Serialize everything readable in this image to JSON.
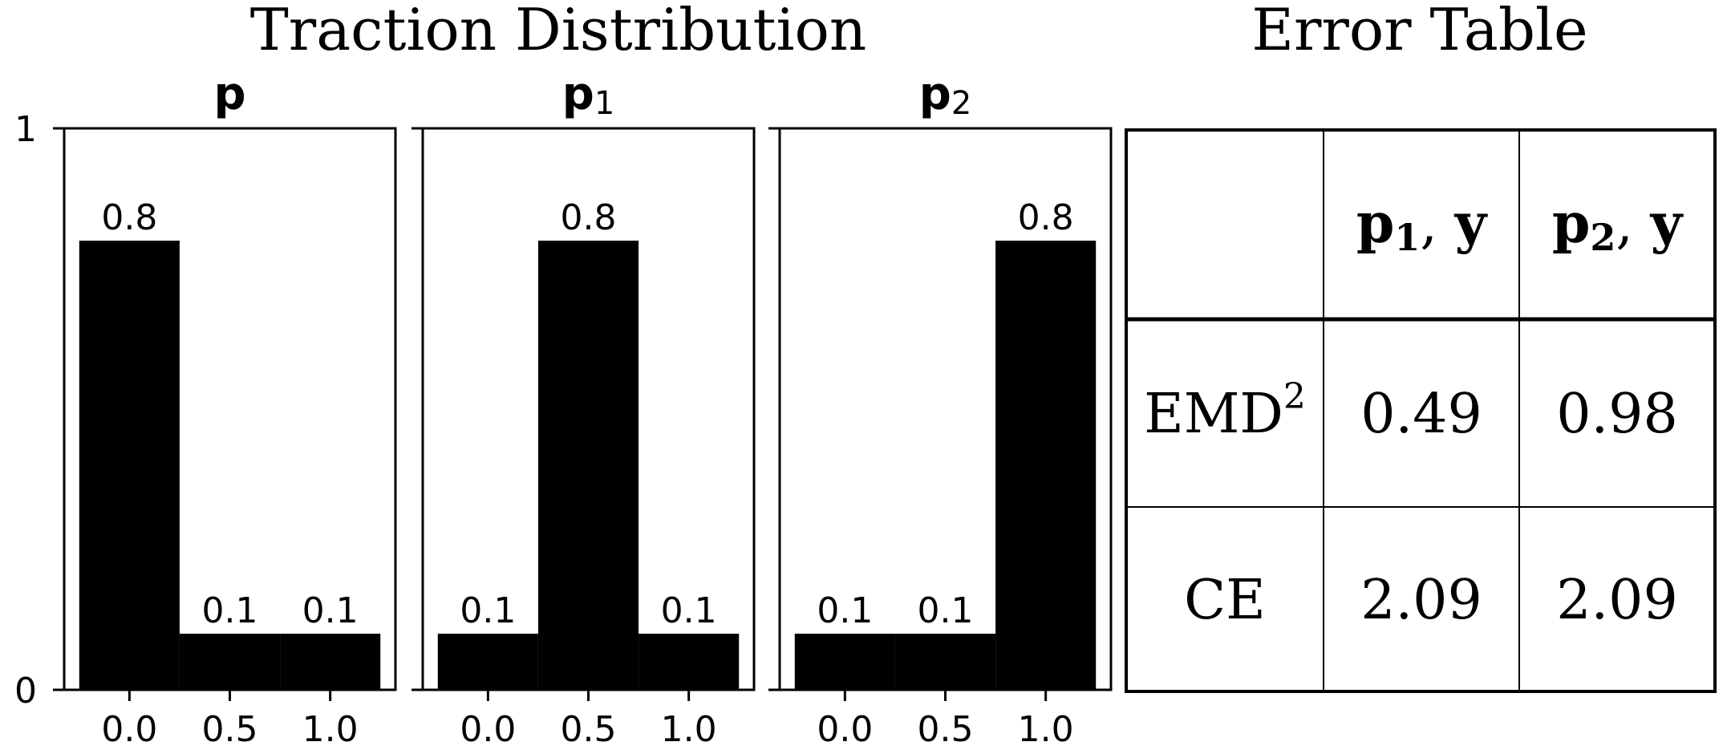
{
  "header": {
    "left_title": "Traction Distribution",
    "right_title": "Error Table"
  },
  "chart_data": [
    {
      "type": "bar",
      "title_main": "p",
      "title_sub": "",
      "x": [
        0.0,
        0.5,
        1.0
      ],
      "values": [
        0.8,
        0.1,
        0.1
      ],
      "data_labels": [
        "0.8",
        "0.1",
        "0.1"
      ],
      "xticks": [
        "0.0",
        "0.5",
        "1.0"
      ],
      "yticks": [
        "0",
        "1"
      ],
      "ylim": [
        0,
        1
      ],
      "xlim": [
        -0.325,
        1.325
      ],
      "bar_width": 0.5,
      "bar_color": "#000000"
    },
    {
      "type": "bar",
      "title_main": "p",
      "title_sub": "1",
      "x": [
        0.0,
        0.5,
        1.0
      ],
      "values": [
        0.1,
        0.8,
        0.1
      ],
      "data_labels": [
        "0.1",
        "0.8",
        "0.1"
      ],
      "xticks": [
        "0.0",
        "0.5",
        "1.0"
      ],
      "yticks": [
        "0",
        "1"
      ],
      "ylim": [
        0,
        1
      ],
      "xlim": [
        -0.325,
        1.325
      ],
      "bar_width": 0.5,
      "bar_color": "#000000"
    },
    {
      "type": "bar",
      "title_main": "p",
      "title_sub": "2",
      "x": [
        0.0,
        0.5,
        1.0
      ],
      "values": [
        0.1,
        0.1,
        0.8
      ],
      "data_labels": [
        "0.1",
        "0.1",
        "0.8"
      ],
      "xticks": [
        "0.0",
        "0.5",
        "1.0"
      ],
      "yticks": [
        "0",
        "1"
      ],
      "ylim": [
        0,
        1
      ],
      "xlim": [
        -0.325,
        1.325
      ],
      "bar_width": 0.5,
      "bar_color": "#000000"
    },
    {
      "type": "table",
      "columns": [
        {
          "main": "p",
          "sub": "1",
          "sep": ", ",
          "tail": "y"
        },
        {
          "main": "p",
          "sub": "2",
          "sep": ", ",
          "tail": "y"
        }
      ],
      "rows": [
        {
          "label": "EMD",
          "label_sup": "2",
          "values": [
            "0.49",
            "0.98"
          ]
        },
        {
          "label": "CE",
          "label_sup": "",
          "values": [
            "2.09",
            "2.09"
          ]
        }
      ]
    }
  ]
}
